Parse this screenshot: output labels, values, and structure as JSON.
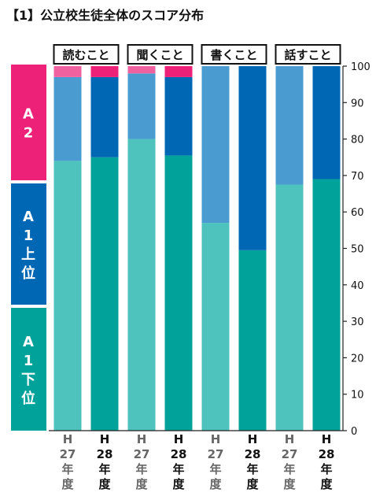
{
  "title": "【1】公立校生徒全体のスコア分布",
  "chart_data": {
    "type": "bar",
    "stacked": true,
    "title": "【1】公立校生徒全体のスコア分布",
    "groups": [
      "読むこと",
      "聞くこと",
      "書くこと",
      "話すこと"
    ],
    "bar_labels": [
      [
        "H",
        "27",
        "年",
        "度"
      ],
      [
        "H",
        "28",
        "年",
        "度"
      ]
    ],
    "ylim": [
      0,
      100
    ],
    "yticks": [
      0,
      10,
      20,
      30,
      40,
      50,
      60,
      70,
      80,
      90,
      100
    ],
    "legend": [
      {
        "name": "A2",
        "lines": [
          "A",
          "2"
        ],
        "color": "#ee2178"
      },
      {
        "name": "A1上位",
        "lines": [
          "A",
          "1",
          "上",
          "位"
        ],
        "color": "#0067b4"
      },
      {
        "name": "A1下位",
        "lines": [
          "A",
          "1",
          "下",
          "位"
        ],
        "color": "#00a29a"
      }
    ],
    "colors": {
      "H27": {
        "A1下位": "#4ec3bd",
        "A1上位": "#4a9bd0",
        "A2": "#f061a0"
      },
      "H28": {
        "A1下位": "#00a29a",
        "A1上位": "#0067b4",
        "A2": "#ee2178"
      }
    },
    "bars": [
      {
        "group": "読むこと",
        "year": "H27",
        "A1下位": 74,
        "A1上位": 23,
        "A2": 3
      },
      {
        "group": "読むこと",
        "year": "H28",
        "A1下位": 75,
        "A1上位": 22,
        "A2": 3
      },
      {
        "group": "聞くこと",
        "year": "H27",
        "A1下位": 80,
        "A1上位": 18,
        "A2": 2
      },
      {
        "group": "聞くこと",
        "year": "H28",
        "A1下位": 75.5,
        "A1上位": 21.5,
        "A2": 3
      },
      {
        "group": "書くこと",
        "year": "H27",
        "A1下位": 57,
        "A1上位": 43,
        "A2": 0
      },
      {
        "group": "書くこと",
        "year": "H28",
        "A1下位": 49.5,
        "A1上位": 50.5,
        "A2": 0
      },
      {
        "group": "話すこと",
        "year": "H27",
        "A1下位": 67.5,
        "A1上位": 32.5,
        "A2": 0
      },
      {
        "group": "話すこと",
        "year": "H28",
        "A1下位": 69,
        "A1上位": 31,
        "A2": 0
      }
    ]
  }
}
